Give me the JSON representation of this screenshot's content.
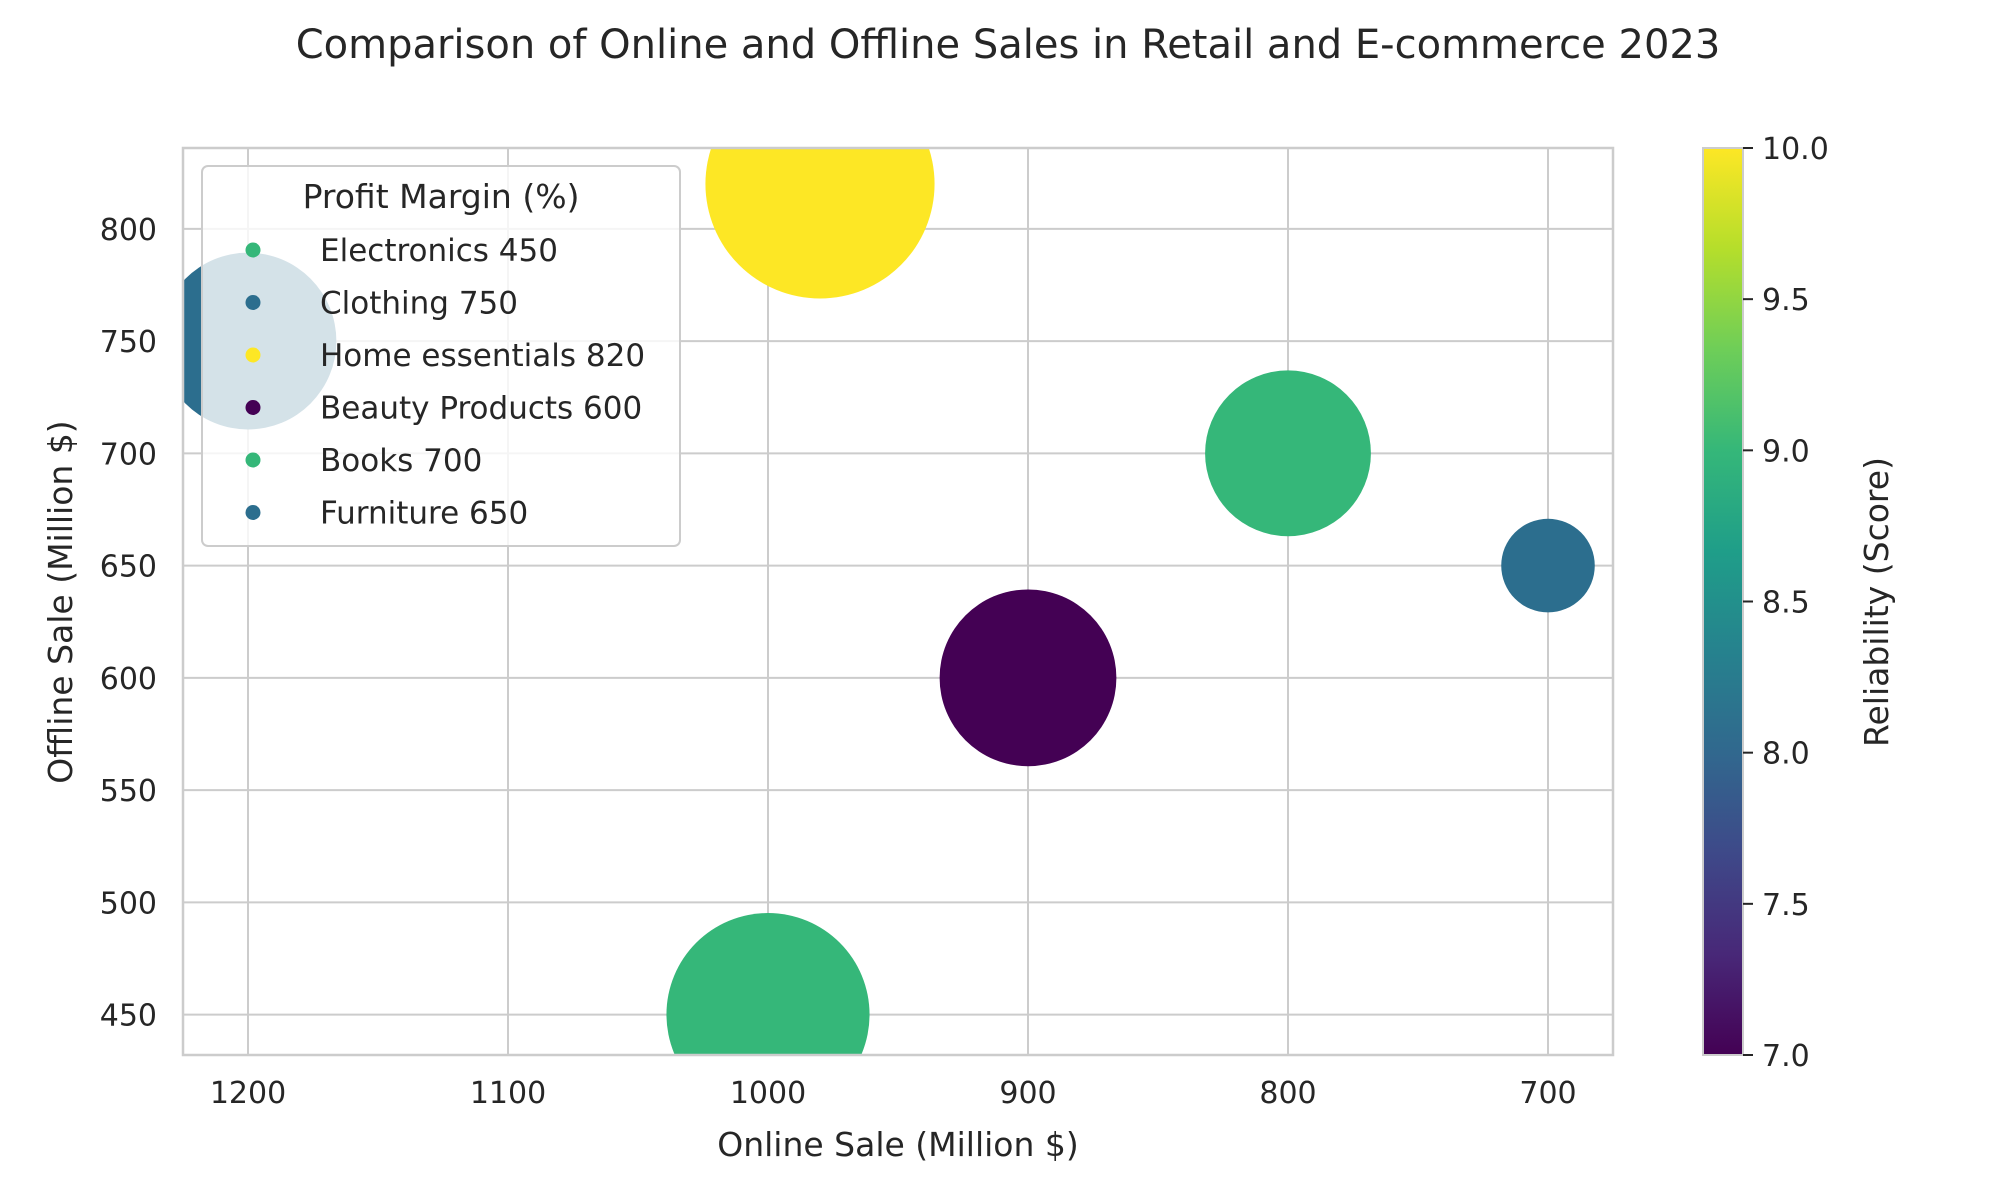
{
  "chart_data": {
    "type": "scatter",
    "title": "Comparison of Online and Offline Sales in Retail and E-commerce 2023",
    "xlabel": "Online Sale (Million $)",
    "ylabel": "Offline Sale (Million $)",
    "xlim": [
      1225,
      675
    ],
    "ylim": [
      432,
      836
    ],
    "xticks": [
      1200,
      1100,
      1000,
      900,
      800,
      700
    ],
    "yticks": [
      450,
      500,
      550,
      600,
      650,
      700,
      750,
      800
    ],
    "x_inverted": true,
    "grid": true,
    "points": [
      {
        "name": "Electronics",
        "x": 1000,
        "y": 450,
        "reliability": 9.1,
        "size": 1650,
        "color": "#35b779"
      },
      {
        "name": "Clothing",
        "x": 1200,
        "y": 750,
        "reliability": 8.0,
        "size": 1250,
        "color": "#2c6e8e"
      },
      {
        "name": "Home essentials",
        "x": 980,
        "y": 820,
        "reliability": 10.0,
        "size": 2100,
        "color": "#fde725"
      },
      {
        "name": "Beauty Products",
        "x": 900,
        "y": 600,
        "reliability": 7.0,
        "size": 1250,
        "color": "#440154"
      },
      {
        "name": "Books",
        "x": 800,
        "y": 700,
        "reliability": 9.1,
        "size": 1100,
        "color": "#35b779"
      },
      {
        "name": "Furniture",
        "x": 700,
        "y": 650,
        "reliability": 8.0,
        "size": 350,
        "color": "#2c6e8e"
      }
    ],
    "legend": {
      "title": "Profit Margin (%)",
      "placement": "top-left",
      "entries": [
        {
          "label": "Electronics 450",
          "color": "#35b779"
        },
        {
          "label": "Clothing 750",
          "color": "#2c6e8e"
        },
        {
          "label": "Home essentials 820",
          "color": "#fde725"
        },
        {
          "label": "Beauty Products 600",
          "color": "#440154"
        },
        {
          "label": "Books 700",
          "color": "#35b779"
        },
        {
          "label": "Furniture 650",
          "color": "#2c6e8e"
        }
      ]
    },
    "colorbar": {
      "label": "Reliability (Score)",
      "range": [
        7.0,
        10.0
      ],
      "ticks": [
        "7.0",
        "7.5",
        "8.0",
        "8.5",
        "9.0",
        "9.5",
        "10.0"
      ],
      "colormap": "viridis",
      "stops": [
        "#440154",
        "#482878",
        "#3e4989",
        "#31688e",
        "#26828e",
        "#1f9e89",
        "#35b779",
        "#6ece58",
        "#b5de2b",
        "#fde725"
      ]
    }
  }
}
